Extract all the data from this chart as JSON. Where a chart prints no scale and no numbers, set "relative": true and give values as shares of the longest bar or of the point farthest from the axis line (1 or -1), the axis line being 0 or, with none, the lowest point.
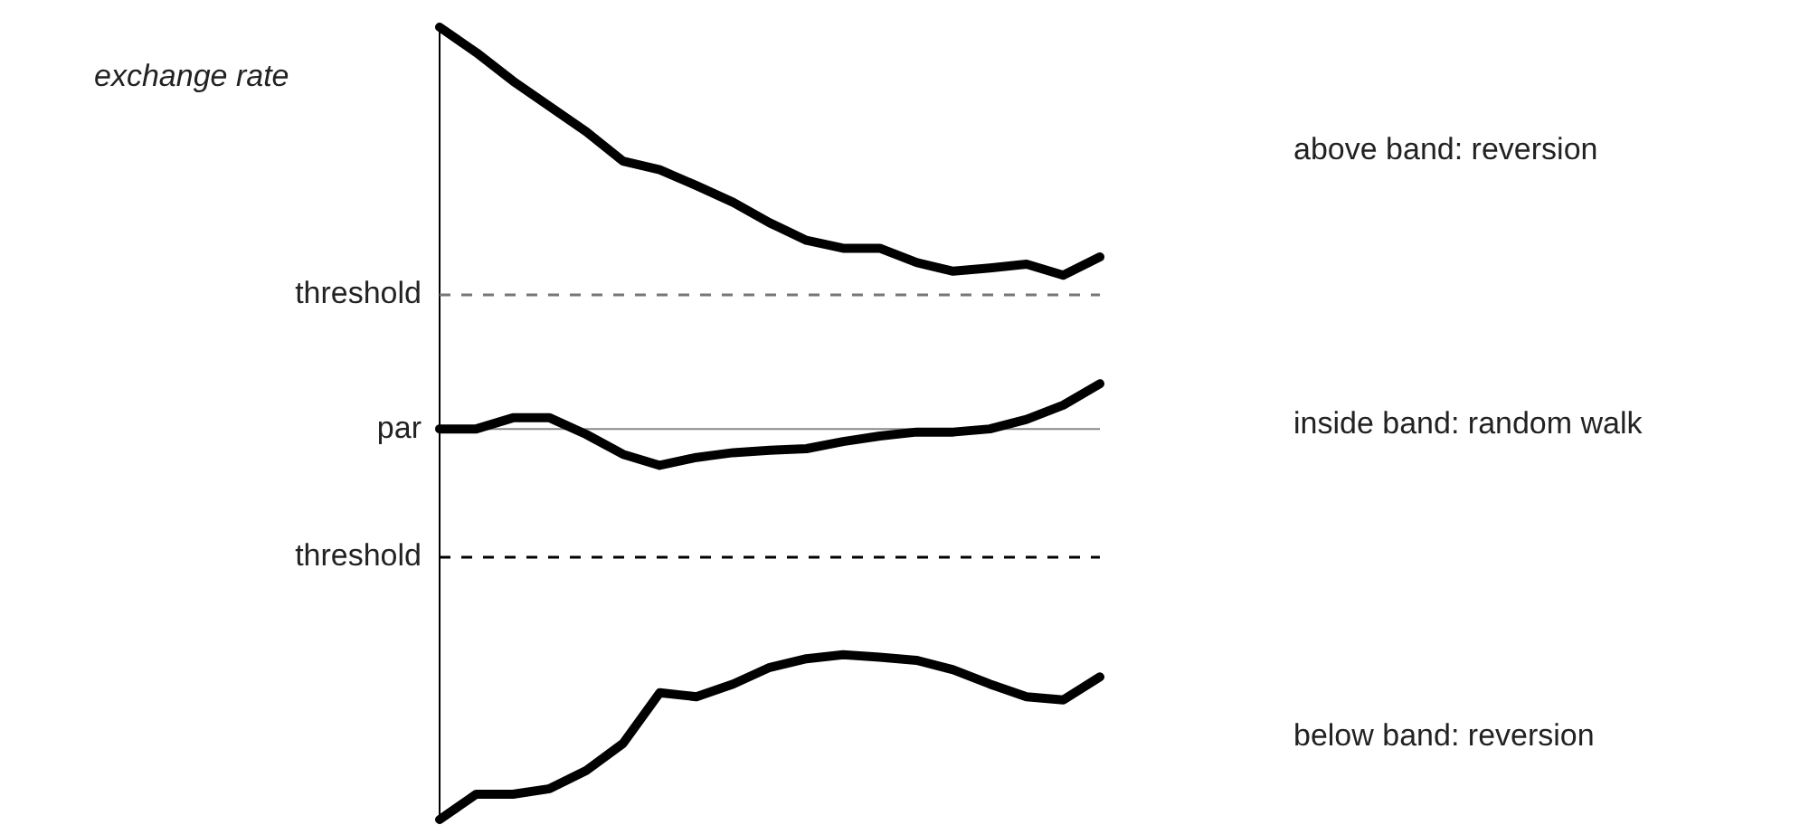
{
  "chart_data": {
    "type": "line",
    "relative": true,
    "ylabel": "exchange rate",
    "categories": [
      null,
      null,
      null,
      null,
      null,
      null,
      null,
      null,
      null,
      null,
      null,
      null,
      null,
      null,
      null,
      null,
      null,
      null,
      null
    ],
    "series": [
      {
        "color": "#000000",
        "values": [
          1,
          0.968,
          0.932,
          0.9,
          0.868,
          0.831,
          0.82,
          0.8,
          0.779,
          0.753,
          0.731,
          0.721,
          0.721,
          0.703,
          0.692,
          0.696,
          0.701,
          0.687,
          0.71
        ]
      },
      {
        "color": "#000000",
        "values": [
          0.493,
          0.493,
          0.507,
          0.507,
          0.486,
          0.461,
          0.447,
          0.457,
          0.463,
          0.466,
          0.468,
          0.477,
          0.484,
          0.489,
          0.489,
          0.493,
          0.505,
          0.523,
          0.55
        ]
      },
      {
        "color": "#000000",
        "values": [
          0,
          0.032,
          0.032,
          0.039,
          0.062,
          0.096,
          0.16,
          0.155,
          0.171,
          0.192,
          0.203,
          0.208,
          0.205,
          0.201,
          0.189,
          0.171,
          0.155,
          0.151,
          0.18
        ]
      }
    ],
    "ref_lines": [
      {
        "axis": "y",
        "value": 0.662,
        "label": "threshold",
        "color": "#777777",
        "line_style": "dashed"
      },
      {
        "axis": "y",
        "value": 0.493,
        "label": "par",
        "color": "#888888",
        "line_style": "solid"
      },
      {
        "axis": "y",
        "value": 0.331,
        "label": "threshold",
        "color": "#000000",
        "line_style": "dashed"
      }
    ],
    "annotations": [
      "above band: reversion",
      "inside band: random walk",
      "below band: reversion"
    ],
    "marker": "none",
    "line_style": "solid",
    "legend": false
  }
}
